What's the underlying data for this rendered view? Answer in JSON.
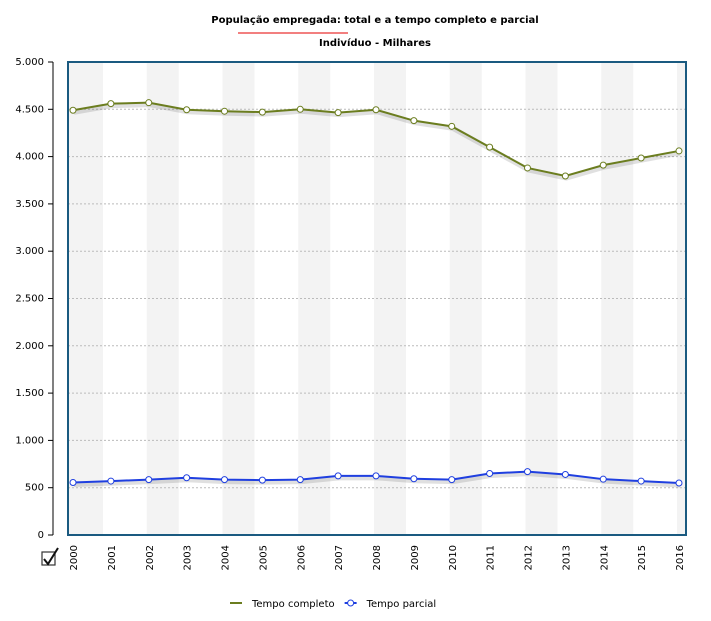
{
  "chart_data": {
    "type": "line",
    "title": "População empregada: total e a tempo completo e parcial",
    "subtitle": "Indivíduo - Milhares",
    "categories": [
      "2000",
      "2001",
      "2002",
      "2003",
      "2004",
      "2005",
      "2006",
      "2007",
      "2008",
      "2009",
      "2010",
      "2011",
      "2012",
      "2013",
      "2014",
      "2015",
      "2016"
    ],
    "series": [
      {
        "name": "Tempo completo",
        "color": "#6b7d1f",
        "values": [
          4490,
          4560,
          4570,
          4495,
          4480,
          4470,
          4500,
          4465,
          4495,
          4380,
          4320,
          4100,
          3880,
          3795,
          3910,
          3985,
          4060
        ]
      },
      {
        "name": "Tempo parcial",
        "color": "#1f3fe0",
        "values": [
          555,
          570,
          585,
          605,
          585,
          580,
          585,
          625,
          625,
          595,
          585,
          650,
          670,
          640,
          590,
          570,
          550
        ]
      }
    ],
    "ylim": [
      0,
      5000
    ],
    "yticks": [
      0,
      500,
      {
        "value": 1000,
        "label": "1.000"
      },
      {
        "value": 1500,
        "label": "1.500"
      },
      {
        "value": 2000,
        "label": "2.000"
      },
      {
        "value": 2500,
        "label": "2.500"
      },
      {
        "value": 3000,
        "label": "3.000"
      },
      {
        "value": 3500,
        "label": "3.500"
      },
      {
        "value": 4000,
        "label": "4.000"
      },
      {
        "value": 4500,
        "label": "4.500"
      },
      {
        "value": 5000,
        "label": "5.000"
      }
    ],
    "grid": true,
    "legend": "bottom"
  }
}
